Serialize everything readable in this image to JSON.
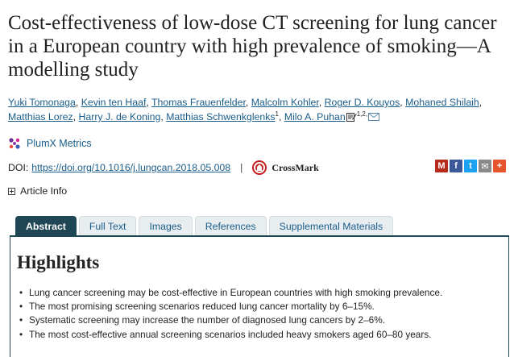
{
  "article": {
    "title": "Cost-effectiveness of low-dose CT screening for lung cancer in a European country with high prevalence of smoking—A modelling study"
  },
  "authors": [
    {
      "name": "Yuki Tomonaga"
    },
    {
      "name": "Kevin ten Haaf"
    },
    {
      "name": "Thomas Frauenfelder"
    },
    {
      "name": "Malcolm Kohler"
    },
    {
      "name": "Roger D. Kouyos"
    },
    {
      "name": "Mohaned Shilaih"
    },
    {
      "name": "Matthias Lorez"
    },
    {
      "name": "Harry J. de Koning"
    },
    {
      "name": "Matthias Schwenkglenks",
      "sup": "1"
    },
    {
      "name": "Milo A. Puhan",
      "sup": "1,2,"
    }
  ],
  "metrics": {
    "plumx_label": "PlumX Metrics"
  },
  "doi": {
    "label": "DOI:",
    "link_text": "https://doi.org/10.1016/j.lungcan.2018.05.008",
    "separator": "|",
    "crossmark_label": "CrossMark"
  },
  "share": [
    {
      "icon": "mendeley-icon",
      "glyph": "M",
      "color": "#b52b1c"
    },
    {
      "icon": "facebook-icon",
      "glyph": "f",
      "color": "#3b5998"
    },
    {
      "icon": "twitter-icon",
      "glyph": "t",
      "color": "#1da1f2"
    },
    {
      "icon": "email-share-icon",
      "glyph": "✉",
      "color": "#8a8a8a"
    },
    {
      "icon": "more-share-icon",
      "glyph": "+",
      "color": "#e4572e"
    }
  ],
  "article_info": {
    "label": "Article Info"
  },
  "tabs": [
    {
      "label": "Abstract",
      "active": true
    },
    {
      "label": "Full Text"
    },
    {
      "label": "Images"
    },
    {
      "label": "References"
    },
    {
      "label": "Supplemental Materials"
    }
  ],
  "highlights": {
    "title": "Highlights",
    "items": [
      "Lung cancer screening may be cost-effective in European countries with high smoking prevalence.",
      "The most promising screening scenarios reduced lung cancer mortality by 6–15%.",
      "Systematic screening may increase the number of diagnosed lung cancers by 2–6%.",
      "The most cost-effective annual screening scenarios included heavy smokers aged 60–80 years."
    ]
  },
  "colors": {
    "link": "#1a5d8a",
    "tab_active": "#1f4654"
  }
}
